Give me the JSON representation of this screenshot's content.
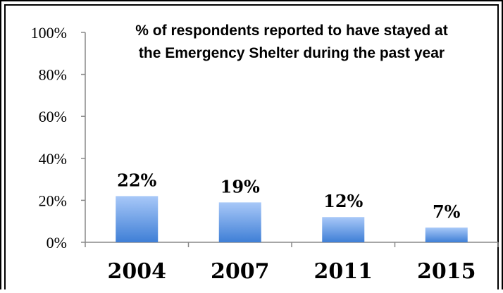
{
  "chart_data": {
    "type": "bar",
    "title_lines": [
      "% of respondents reported to have stayed at",
      "the Emergency Shelter during the past year"
    ],
    "categories": [
      "2004",
      "2007",
      "2011",
      "2015"
    ],
    "values": [
      22,
      19,
      12,
      7
    ],
    "value_labels": [
      "22%",
      "19%",
      "12%",
      "7%"
    ],
    "ylim": [
      0,
      100
    ],
    "yticks": [
      0,
      20,
      40,
      60,
      80,
      100
    ],
    "ytick_labels": [
      "0%",
      "20%",
      "40%",
      "60%",
      "80%",
      "100%"
    ],
    "xlabel": "",
    "ylabel": "",
    "grid": false,
    "legend": "none",
    "bar_color_top": "#a8c8f8",
    "bar_color_bottom": "#3f7fd6"
  }
}
